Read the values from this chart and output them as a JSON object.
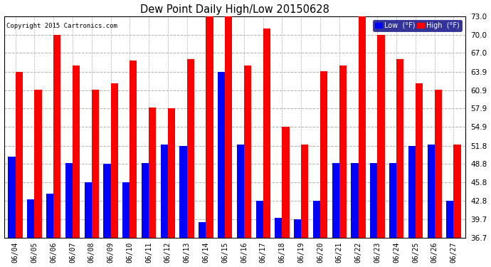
{
  "title": "Dew Point Daily High/Low 20150628",
  "copyright": "Copyright 2015 Cartronics.com",
  "dates": [
    "06/04",
    "06/05",
    "06/06",
    "06/07",
    "06/08",
    "06/09",
    "06/10",
    "06/11",
    "06/12",
    "06/13",
    "06/14",
    "06/15",
    "06/16",
    "06/17",
    "06/18",
    "06/19",
    "06/20",
    "06/21",
    "06/22",
    "06/23",
    "06/24",
    "06/25",
    "06/26",
    "06/27"
  ],
  "high": [
    63.9,
    61.0,
    70.0,
    65.0,
    61.0,
    62.0,
    65.8,
    58.1,
    58.0,
    66.0,
    73.0,
    73.0,
    65.0,
    71.0,
    54.9,
    52.0,
    64.0,
    65.0,
    73.0,
    70.0,
    66.0,
    62.0,
    61.0,
    52.0
  ],
  "low": [
    50.0,
    43.0,
    43.9,
    49.0,
    45.8,
    48.8,
    45.8,
    49.0,
    52.0,
    51.8,
    39.2,
    63.9,
    52.0,
    42.8,
    40.0,
    39.7,
    42.8,
    49.0,
    49.0,
    49.0,
    49.0,
    51.8,
    52.0,
    42.8
  ],
  "ylim_min": 36.7,
  "ylim_max": 73.0,
  "yticks": [
    36.7,
    39.7,
    42.8,
    45.8,
    48.8,
    51.8,
    54.9,
    57.9,
    60.9,
    63.9,
    67.0,
    70.0,
    73.0
  ],
  "low_color": "#0000ff",
  "high_color": "#ff0000",
  "bg_color": "#ffffff",
  "grid_color": "#b0b0b0",
  "bar_width": 0.38,
  "legend_low_label": "Low  (°F)",
  "legend_high_label": "High  (°F)"
}
